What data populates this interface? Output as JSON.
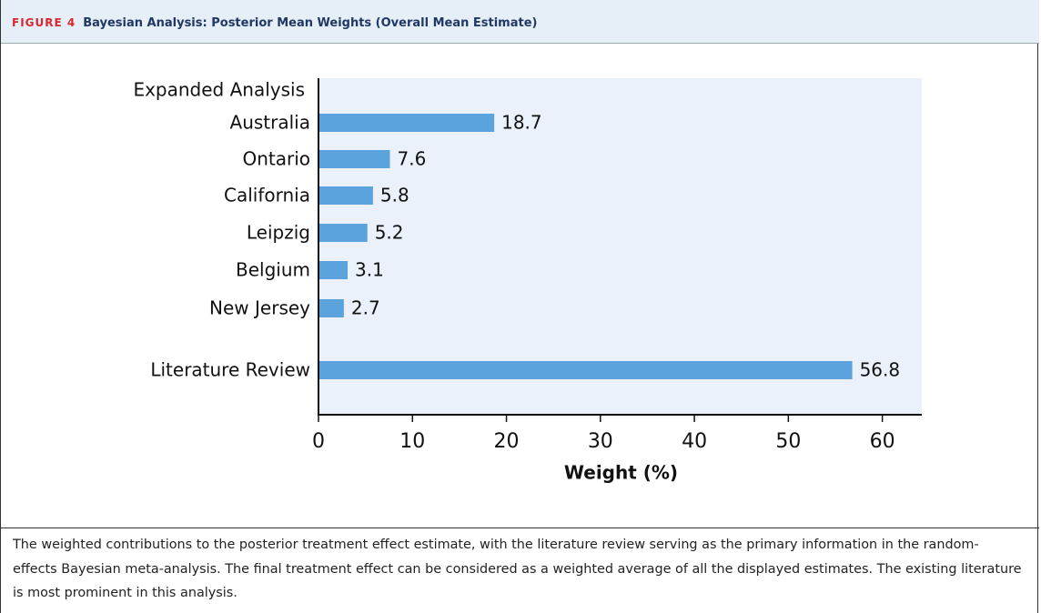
{
  "header": {
    "figure_label": "FIGURE 4",
    "title": "Bayesian Analysis: Posterior Mean Weights (Overall Mean Estimate)"
  },
  "chart_data": {
    "type": "bar",
    "orientation": "horizontal",
    "group_label": "Expanded Analysis",
    "categories": [
      "Australia",
      "Ontario",
      "California",
      "Leipzig",
      "Belgium",
      "New Jersey",
      "Literature Review"
    ],
    "values": [
      18.7,
      7.6,
      5.8,
      5.2,
      3.1,
      2.7,
      56.8
    ],
    "color": "#5ba3dc",
    "xlabel": "Weight (%)",
    "xlim": [
      0,
      64.2
    ],
    "xticks": [
      0,
      10,
      20,
      30,
      40,
      50,
      60
    ]
  },
  "caption": "The weighted contributions to the posterior treatment effect estimate, with the literature review serving as the primary information in the random-effects Bayesian meta-analysis. The final treatment effect can be considered as a weighted average of all the displayed estimates. The existing literature is most prominent in this analysis."
}
